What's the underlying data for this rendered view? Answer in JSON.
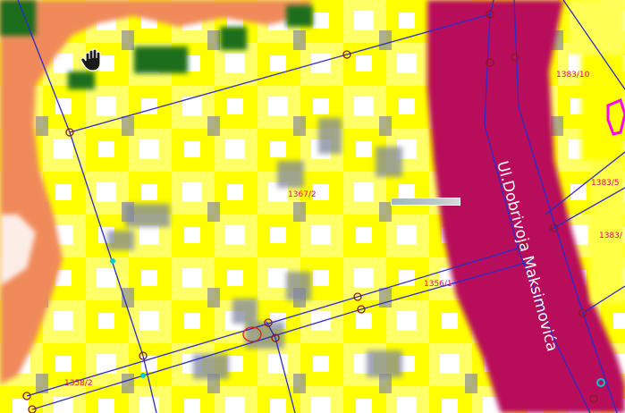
{
  "map": {
    "street_name": "Ul.Dobrivoja Maksimovića",
    "parcels": [
      {
        "label": "1367/2"
      },
      {
        "label": "1356/1"
      },
      {
        "label": "1358/2"
      },
      {
        "label": "1383/10"
      },
      {
        "label": "1383/5"
      },
      {
        "label": "1383/"
      }
    ],
    "colors": {
      "parcel_fill": "#ffff00",
      "street_fill": "#b8105a",
      "building_fill": "#f08a5a",
      "vegetation_fill": "#1f6e1f",
      "boundary_line": "#2b2bc8",
      "vertex_marker": "#8b1a1a",
      "label_color": "#e6007e"
    }
  },
  "tools": {
    "pan_icon": "hand-pan-icon",
    "scale_bar_icon": "scale-bar-icon"
  }
}
